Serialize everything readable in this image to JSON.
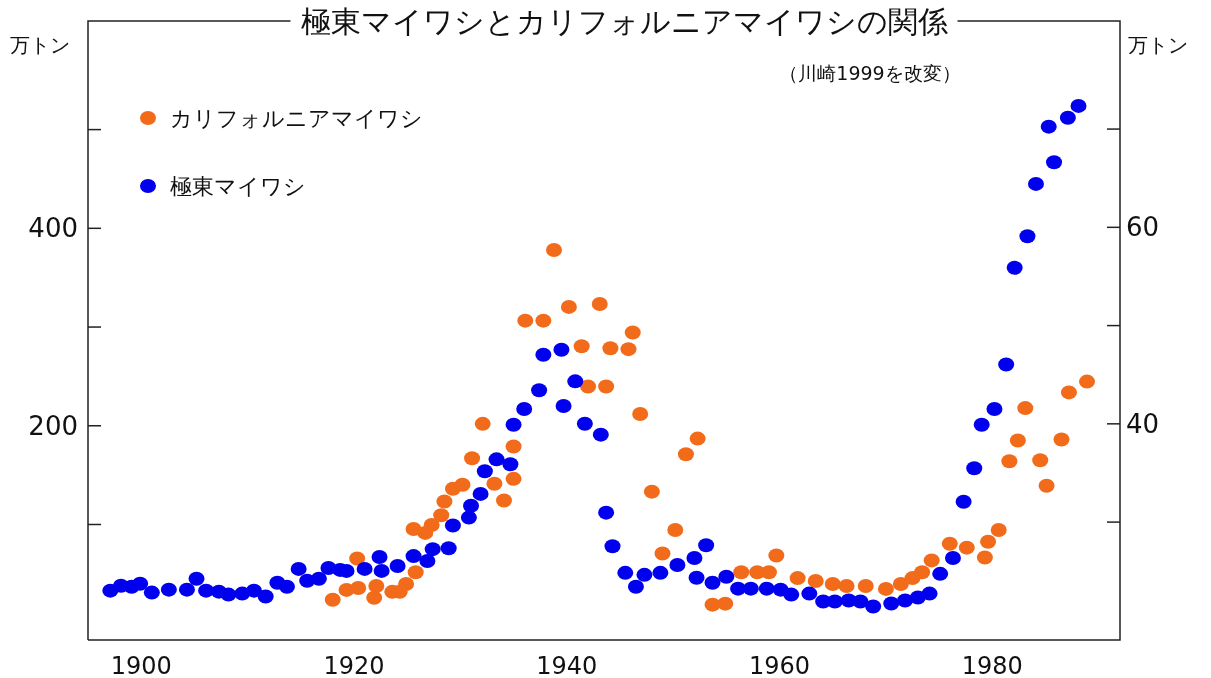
{
  "chart_data": {
    "type": "scatter",
    "title": "極東マイワシとカリフォルニアマイワシの関係",
    "subtitle": "（川崎1999を改変）",
    "ylabel": "万トン",
    "y2label": "万トン",
    "marker": "circle",
    "legend": "top left",
    "grid": false,
    "xlim": [
      1895,
      1992
    ],
    "xticks": [
      1900,
      1920,
      1940,
      1960,
      1980
    ],
    "ylim": [
      -17,
      610
    ],
    "yticks": [
      {
        "value": 100,
        "label": null
      },
      200,
      {
        "value": 300,
        "label": null
      },
      400,
      {
        "value": 500,
        "label": null
      }
    ],
    "y2lim": [
      18,
      81
    ],
    "y2ticks": [
      {
        "value": 30,
        "label": null
      },
      40,
      {
        "value": 50,
        "label": null
      },
      60,
      {
        "value": 70,
        "label": null
      }
    ],
    "series": [
      {
        "name": "カリフォルニアマイワシ",
        "color": "#f26b1a",
        "axis": "y2",
        "x": [
          1918.0,
          1919.3,
          1920.3,
          1920.4,
          1921.9,
          1922.1,
          1923.6,
          1924.3,
          1924.9,
          1925.8,
          1925.6,
          1926.7,
          1927.3,
          1928.2,
          1928.5,
          1929.3,
          1930.2,
          1931.1,
          1932.1,
          1933.2,
          1934.1,
          1935.0,
          1935.0,
          1936.1,
          1937.8,
          1938.8,
          1940.2,
          1941.4,
          1942.0,
          1943.1,
          1943.7,
          1944.1,
          1945.8,
          1946.2,
          1946.9,
          1948.0,
          1949.0,
          1950.2,
          1951.2,
          1952.3,
          1953.7,
          1954.9,
          1956.4,
          1957.9,
          1959.0,
          1959.7,
          1961.7,
          1963.4,
          1965.0,
          1966.3,
          1968.1,
          1970.0,
          1971.4,
          1972.5,
          1973.4,
          1974.3,
          1976.0,
          1977.6,
          1979.3,
          1979.6,
          1980.6,
          1981.6,
          1982.4,
          1983.1,
          1984.5,
          1985.1,
          1986.5,
          1987.2,
          1988.9
        ],
        "values": [
          22.1,
          23.1,
          26.3,
          23.3,
          22.3,
          23.5,
          22.9,
          22.9,
          23.7,
          24.9,
          29.3,
          28.9,
          29.7,
          30.7,
          32.1,
          33.4,
          33.8,
          36.5,
          40.0,
          33.9,
          32.2,
          34.4,
          37.7,
          50.5,
          50.5,
          57.7,
          51.9,
          47.9,
          43.8,
          52.2,
          43.8,
          47.7,
          47.6,
          49.3,
          41.0,
          33.1,
          26.8,
          29.2,
          36.9,
          38.5,
          21.6,
          21.7,
          24.9,
          24.9,
          24.9,
          26.6,
          24.3,
          24.0,
          23.7,
          23.5,
          23.5,
          23.2,
          23.7,
          24.3,
          24.9,
          26.1,
          27.8,
          27.4,
          26.4,
          28.0,
          29.2,
          36.2,
          38.3,
          41.6,
          36.3,
          33.7,
          38.4,
          43.2,
          44.3
        ]
      },
      {
        "name": "極東マイワシ",
        "color": "#0000ee",
        "axis": "y",
        "x": [
          1897.1,
          1898.1,
          1899.1,
          1899.9,
          1901.0,
          1902.6,
          1904.3,
          1905.2,
          1906.1,
          1907.3,
          1908.2,
          1909.5,
          1910.6,
          1911.7,
          1912.8,
          1913.7,
          1914.8,
          1915.6,
          1916.7,
          1917.6,
          1918.7,
          1919.3,
          1921.0,
          1922.4,
          1922.6,
          1924.1,
          1925.6,
          1926.9,
          1927.4,
          1928.9,
          1929.3,
          1930.8,
          1931.0,
          1931.9,
          1932.3,
          1933.4,
          1934.7,
          1935.0,
          1936.0,
          1937.4,
          1937.8,
          1939.5,
          1939.7,
          1940.8,
          1941.7,
          1943.2,
          1943.7,
          1944.3,
          1945.5,
          1946.5,
          1947.3,
          1948.8,
          1950.4,
          1952.0,
          1952.2,
          1953.1,
          1953.7,
          1955.0,
          1956.1,
          1957.3,
          1958.8,
          1960.1,
          1961.1,
          1962.8,
          1964.1,
          1965.2,
          1966.5,
          1967.6,
          1968.8,
          1970.5,
          1971.8,
          1973.0,
          1974.1,
          1975.1,
          1976.3,
          1977.3,
          1978.3,
          1979.0,
          1980.2,
          1981.3,
          1982.1,
          1983.3,
          1984.1,
          1985.3,
          1985.8,
          1987.1,
          1988.1
        ],
        "values": [
          33,
          38,
          37,
          40,
          31,
          34,
          34,
          45,
          33,
          32,
          29,
          30,
          33,
          27,
          41,
          37,
          55,
          43,
          45,
          56,
          54,
          53,
          55,
          67,
          53,
          58,
          68,
          63,
          75,
          76,
          99,
          107,
          119,
          131,
          154,
          166,
          161,
          201,
          217,
          236,
          272,
          277,
          220,
          245,
          202,
          191,
          112,
          78,
          51,
          37,
          49,
          51,
          59,
          66,
          46,
          79,
          41,
          47,
          35,
          35,
          35,
          34,
          29,
          30,
          22,
          22,
          23,
          22,
          17,
          20,
          23,
          26,
          30,
          50,
          66,
          123,
          157,
          201,
          217,
          262,
          360,
          392,
          445,
          503,
          467,
          512,
          524
        ]
      }
    ]
  }
}
